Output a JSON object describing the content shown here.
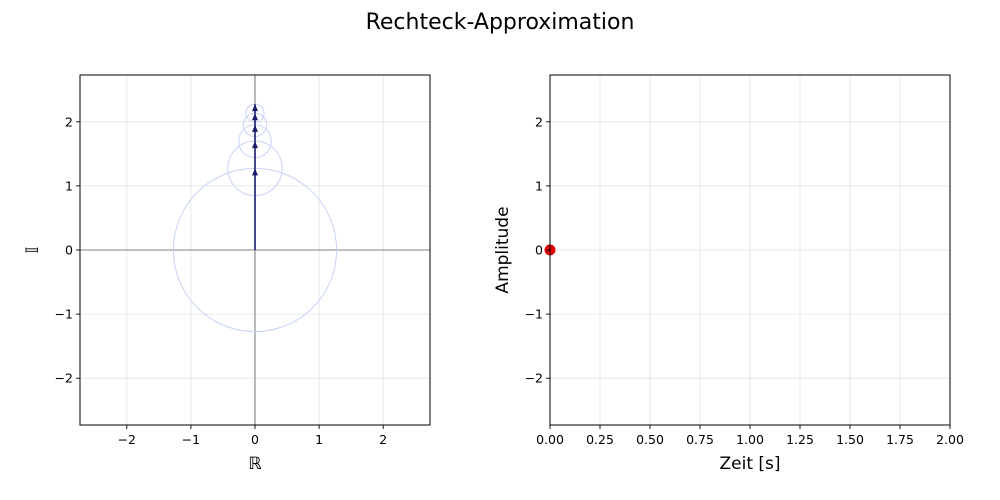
{
  "figure_title": "Rechteck-Approximation",
  "colors": {
    "axis_line": "#808080",
    "circle": "#c8d4f7",
    "phasor": "#1a1a6e",
    "point": "#e00000",
    "grid": "#b0b0b0"
  },
  "chart_data": [
    {
      "type": "scatter",
      "subtype": "phasor-diagram",
      "title": "",
      "xlabel": "ℝ",
      "ylabel": "𝕀",
      "xlim": [
        -2.73,
        2.73
      ],
      "ylim": [
        -2.73,
        2.73
      ],
      "xticks": [
        -2,
        -1,
        0,
        1,
        2
      ],
      "yticks": [
        -2,
        -1,
        0,
        1,
        2
      ],
      "xtick_labels": [
        "−2",
        "−1",
        "0",
        "1",
        "2"
      ],
      "ytick_labels": [
        "−2",
        "−1",
        "0",
        "1",
        "2"
      ],
      "grid": true,
      "circles": [
        {
          "cx": 0,
          "cy": 0,
          "r": 1.2732
        },
        {
          "cx": 0,
          "cy": 1.2732,
          "r": 0.4244
        },
        {
          "cx": 0,
          "cy": 1.6977,
          "r": 0.2546
        },
        {
          "cx": 0,
          "cy": 1.9523,
          "r": 0.1819
        },
        {
          "cx": 0,
          "cy": 2.1342,
          "r": 0.1415
        }
      ],
      "vectors": [
        {
          "x0": 0,
          "y0": 0,
          "x1": 0,
          "y1": 1.2732
        },
        {
          "x0": 0,
          "y0": 1.2732,
          "x1": 0,
          "y1": 1.6977
        },
        {
          "x0": 0,
          "y0": 1.6977,
          "x1": 0,
          "y1": 1.9523
        },
        {
          "x0": 0,
          "y0": 1.9523,
          "x1": 0,
          "y1": 2.1342
        },
        {
          "x0": 0,
          "y0": 2.1342,
          "x1": 0,
          "y1": 2.2757
        }
      ]
    },
    {
      "type": "line",
      "title": "",
      "xlabel": "Zeit [s]",
      "ylabel": "Amplitude",
      "xlim": [
        0,
        2
      ],
      "ylim": [
        -2.73,
        2.73
      ],
      "xticks": [
        0,
        0.25,
        0.5,
        0.75,
        1.0,
        1.25,
        1.5,
        1.75,
        2.0
      ],
      "yticks": [
        -2,
        -1,
        0,
        1,
        2
      ],
      "xtick_labels": [
        "0.00",
        "0.25",
        "0.50",
        "0.75",
        "1.00",
        "1.25",
        "1.50",
        "1.75",
        "2.00"
      ],
      "ytick_labels": [
        "−2",
        "−1",
        "0",
        "1",
        "2"
      ],
      "grid": true,
      "series": [],
      "points": [
        {
          "x": 0,
          "y": 0
        }
      ]
    }
  ]
}
